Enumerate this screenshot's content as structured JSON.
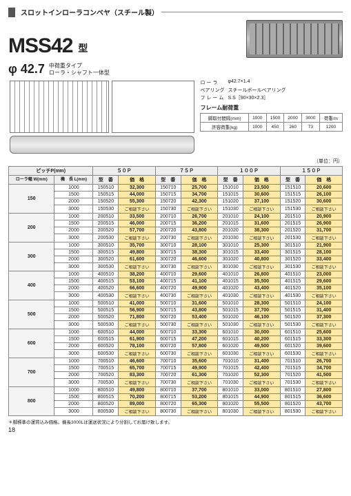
{
  "header": {
    "category": "スロットインローラコンベヤ（スチール製）",
    "model": "MSS42",
    "type_suffix": "型",
    "diameter": "φ 42.7",
    "subtitle_line1": "中荷重タイプ",
    "subtitle_line2": "ローラ・シャフト一体型"
  },
  "spec": {
    "rows": [
      {
        "label": "ロ ー ラ",
        "value": "φ42.7×1.4"
      },
      {
        "label": "ベアリング",
        "value": "スチールボールベアリング"
      },
      {
        "label": "フ レ ー ム",
        "value": "S.S［90×30×2.3］"
      }
    ],
    "load_heading": "フレーム耐荷重",
    "load_table": {
      "header": [
        "脚取付間隔(mm)",
        "1000",
        "1500",
        "2000",
        "3000",
        "荷重/m"
      ],
      "row": [
        "許容荷重(kg)",
        "1000",
        "450",
        "260",
        "73",
        "1200"
      ]
    }
  },
  "unit_label": "（単位：円）",
  "pitch_label": "ピッチP(mm)",
  "sub_headers": {
    "width": "ローラ幅\nW(mm)",
    "length": "機　長\nL(mm)"
  },
  "pitch_cols": [
    "５０Ｐ",
    "７５Ｐ",
    "１００Ｐ",
    "１５０Ｐ"
  ],
  "col_pair": {
    "model": "型　番",
    "price": "価　格"
  },
  "ask_text": "ご相談下さい",
  "groups": [
    {
      "w": "150",
      "rows": [
        {
          "L": "1000",
          "c": [
            [
              "150510",
              "32,300"
            ],
            [
              "150710",
              "25,700"
            ],
            [
              "151010",
              "23,500"
            ],
            [
              "151510",
              "20,600"
            ]
          ]
        },
        {
          "L": "1500",
          "c": [
            [
              "150515",
              "44,000"
            ],
            [
              "150715",
              "34,700"
            ],
            [
              "151015",
              "30,600"
            ],
            [
              "151515",
              "26,100"
            ]
          ]
        },
        {
          "L": "2000",
          "c": [
            [
              "150520",
              "55,300"
            ],
            [
              "150720",
              "42,300"
            ],
            [
              "151020",
              "37,100"
            ],
            [
              "151520",
              "30,600"
            ]
          ]
        },
        {
          "L": "3000",
          "c": [
            [
              "150530",
              "ASK"
            ],
            [
              "150730",
              "ASK"
            ],
            [
              "151030",
              "ASK"
            ],
            [
              "151530",
              "ASK"
            ]
          ]
        }
      ]
    },
    {
      "w": "200",
      "rows": [
        {
          "L": "1000",
          "c": [
            [
              "200510",
              "33,500"
            ],
            [
              "200710",
              "26,700"
            ],
            [
              "201010",
              "24,100"
            ],
            [
              "201510",
              "20,900"
            ]
          ]
        },
        {
          "L": "1500",
          "c": [
            [
              "200515",
              "46,000"
            ],
            [
              "200715",
              "36,200"
            ],
            [
              "201015",
              "31,600"
            ],
            [
              "201515",
              "26,900"
            ]
          ]
        },
        {
          "L": "2000",
          "c": [
            [
              "200520",
              "57,700"
            ],
            [
              "200720",
              "43,800"
            ],
            [
              "201020",
              "38,300"
            ],
            [
              "201520",
              "31,700"
            ]
          ]
        },
        {
          "L": "3000",
          "c": [
            [
              "200530",
              "ASK"
            ],
            [
              "200730",
              "ASK"
            ],
            [
              "201030",
              "ASK"
            ],
            [
              "201530",
              "ASK"
            ]
          ]
        }
      ]
    },
    {
      "w": "300",
      "rows": [
        {
          "L": "1000",
          "c": [
            [
              "300510",
              "35,700"
            ],
            [
              "300710",
              "28,100"
            ],
            [
              "301010",
              "25,300"
            ],
            [
              "301510",
              "21,900"
            ]
          ]
        },
        {
          "L": "1500",
          "c": [
            [
              "300515",
              "49,800"
            ],
            [
              "300715",
              "38,300"
            ],
            [
              "301015",
              "33,400"
            ],
            [
              "301515",
              "28,100"
            ]
          ]
        },
        {
          "L": "2000",
          "c": [
            [
              "300520",
              "61,600"
            ],
            [
              "300720",
              "46,600"
            ],
            [
              "301020",
              "40,800"
            ],
            [
              "301520",
              "33,400"
            ]
          ]
        },
        {
          "L": "3000",
          "c": [
            [
              "300530",
              "ASK"
            ],
            [
              "300730",
              "ASK"
            ],
            [
              "301030",
              "ASK"
            ],
            [
              "301530",
              "ASK"
            ]
          ]
        }
      ]
    },
    {
      "w": "400",
      "rows": [
        {
          "L": "1000",
          "c": [
            [
              "400510",
              "38,200"
            ],
            [
              "400710",
              "29,600"
            ],
            [
              "401010",
              "26,800"
            ],
            [
              "401510",
              "23,000"
            ]
          ]
        },
        {
          "L": "1500",
          "c": [
            [
              "400515",
              "53,100"
            ],
            [
              "400715",
              "41,100"
            ],
            [
              "401015",
              "35,500"
            ],
            [
              "401515",
              "29,600"
            ]
          ]
        },
        {
          "L": "2000",
          "c": [
            [
              "400520",
              "66,600"
            ],
            [
              "400720",
              "49,900"
            ],
            [
              "401020",
              "43,400"
            ],
            [
              "401520",
              "35,100"
            ]
          ]
        },
        {
          "L": "3000",
          "c": [
            [
              "400530",
              "ASK"
            ],
            [
              "400730",
              "ASK"
            ],
            [
              "401030",
              "ASK"
            ],
            [
              "401530",
              "ASK"
            ]
          ]
        }
      ]
    },
    {
      "w": "500",
      "rows": [
        {
          "L": "1000",
          "c": [
            [
              "500510",
              "41,000"
            ],
            [
              "500710",
              "31,600"
            ],
            [
              "501010",
              "28,300"
            ],
            [
              "501510",
              "24,100"
            ]
          ]
        },
        {
          "L": "1500",
          "c": [
            [
              "500515",
              "56,900"
            ],
            [
              "500715",
              "43,800"
            ],
            [
              "501015",
              "37,700"
            ],
            [
              "501515",
              "31,400"
            ]
          ]
        },
        {
          "L": "2000",
          "c": [
            [
              "500520",
              "71,800"
            ],
            [
              "500720",
              "53,400"
            ],
            [
              "501020",
              "46,100"
            ],
            [
              "501520",
              "37,300"
            ]
          ]
        },
        {
          "L": "3000",
          "c": [
            [
              "500530",
              "ASK"
            ],
            [
              "500730",
              "ASK"
            ],
            [
              "501030",
              "ASK"
            ],
            [
              "501530",
              "ASK"
            ]
          ]
        }
      ]
    },
    {
      "w": "600",
      "rows": [
        {
          "L": "1000",
          "c": [
            [
              "600510",
              "44,000"
            ],
            [
              "600710",
              "33,300"
            ],
            [
              "601010",
              "30,000"
            ],
            [
              "601510",
              "25,600"
            ]
          ]
        },
        {
          "L": "1500",
          "c": [
            [
              "600515",
              "61,900"
            ],
            [
              "600715",
              "47,200"
            ],
            [
              "601015",
              "40,200"
            ],
            [
              "601515",
              "33,300"
            ]
          ]
        },
        {
          "L": "2000",
          "c": [
            [
              "600520",
              "78,100"
            ],
            [
              "600720",
              "57,800"
            ],
            [
              "601020",
              "49,500"
            ],
            [
              "601520",
              "39,600"
            ]
          ]
        },
        {
          "L": "3000",
          "c": [
            [
              "600530",
              "ASK"
            ],
            [
              "600730",
              "ASK"
            ],
            [
              "601030",
              "ASK"
            ],
            [
              "601530",
              "ASK"
            ]
          ]
        }
      ]
    },
    {
      "w": "700",
      "rows": [
        {
          "L": "1000",
          "c": [
            [
              "700510",
              "46,600"
            ],
            [
              "700710",
              "35,600"
            ],
            [
              "701010",
              "31,400"
            ],
            [
              "701510",
              "26,700"
            ]
          ]
        },
        {
          "L": "1500",
          "c": [
            [
              "700515",
              "65,700"
            ],
            [
              "700715",
              "49,900"
            ],
            [
              "701015",
              "42,400"
            ],
            [
              "701515",
              "34,700"
            ]
          ]
        },
        {
          "L": "2000",
          "c": [
            [
              "700520",
              "83,300"
            ],
            [
              "700720",
              "61,300"
            ],
            [
              "701020",
              "52,300"
            ],
            [
              "701520",
              "41,500"
            ]
          ]
        },
        {
          "L": "3000",
          "c": [
            [
              "700530",
              "ASK"
            ],
            [
              "700730",
              "ASK"
            ],
            [
              "701030",
              "ASK"
            ],
            [
              "701530",
              "ASK"
            ]
          ]
        }
      ]
    },
    {
      "w": "800",
      "rows": [
        {
          "L": "1000",
          "c": [
            [
              "800510",
              "49,800"
            ],
            [
              "800710",
              "37,700"
            ],
            [
              "801010",
              "33,000"
            ],
            [
              "801510",
              "27,800"
            ]
          ]
        },
        {
          "L": "1500",
          "c": [
            [
              "800515",
              "70,200"
            ],
            [
              "800715",
              "53,200"
            ],
            [
              "801015",
              "44,900"
            ],
            [
              "801515",
              "36,600"
            ]
          ]
        },
        {
          "L": "2000",
          "c": [
            [
              "800520",
              "89,000"
            ],
            [
              "800720",
              "65,300"
            ],
            [
              "801020",
              "55,500"
            ],
            [
              "801520",
              "43,700"
            ]
          ]
        },
        {
          "L": "3000",
          "c": [
            [
              "800530",
              "ASK"
            ],
            [
              "800730",
              "ASK"
            ],
            [
              "801030",
              "ASK"
            ],
            [
              "801530",
              "ASK"
            ]
          ]
        }
      ]
    }
  ],
  "footnote": "＊脚標準の運賃込み価格。機長3000Lは運送状況により分割してお届け致します。",
  "page_number": "18"
}
